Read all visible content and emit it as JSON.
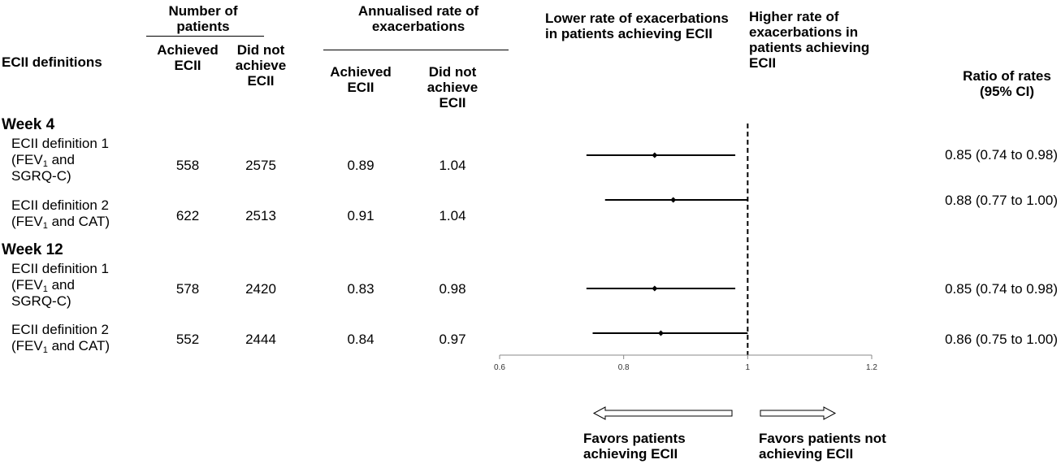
{
  "header": {
    "definitions": "ECII definitions",
    "num_patients": "Number of patients",
    "annualised_rate": "Annualised rate of exacerbations",
    "achieved": "Achieved ECII",
    "did_not_achieve": "Did not achieve ECII",
    "lower_rate": "Lower rate of exacerbations in patients achieving ECII",
    "higher_rate": "Higher rate of exacerbations in patients achieving ECII",
    "ratio": "Ratio of rates (95% CI)"
  },
  "groups": [
    {
      "label": "Week 4",
      "rows": [
        {
          "def_line1": "ECII definition 1",
          "def_line2_pre": "(FEV",
          "def_line2_sub": "1",
          "def_line2_post": " and",
          "def_line3": "SGRQ-C)",
          "n_achieved": "558",
          "n_not": "2575",
          "rate_achieved": "0.89",
          "rate_not": "1.04",
          "ratio_text": "0.85 (0.74 to 0.98)"
        },
        {
          "def_line1": "ECII definition 2",
          "def_line2_pre": "(FEV",
          "def_line2_sub": "1",
          "def_line2_post": " and CAT)",
          "def_line3": "",
          "n_achieved": "622",
          "n_not": "2513",
          "rate_achieved": "0.91",
          "rate_not": "1.04",
          "ratio_text": "0.88 (0.77 to 1.00)"
        }
      ]
    },
    {
      "label": "Week 12",
      "rows": [
        {
          "def_line1": "ECII definition 1",
          "def_line2_pre": "(FEV",
          "def_line2_sub": "1",
          "def_line2_post": " and",
          "def_line3": "SGRQ-C)",
          "n_achieved": "578",
          "n_not": "2420",
          "rate_achieved": "0.83",
          "rate_not": "0.98",
          "ratio_text": "0.85 (0.74 to 0.98)"
        },
        {
          "def_line1": "ECII definition 2",
          "def_line2_pre": "(FEV",
          "def_line2_sub": "1",
          "def_line2_post": " and CAT)",
          "def_line3": "",
          "n_achieved": "552",
          "n_not": "2444",
          "rate_achieved": "0.84",
          "rate_not": "0.97",
          "ratio_text": "0.86 (0.75 to 1.00)"
        }
      ]
    }
  ],
  "footer": {
    "favors_achieving": "Favors patients achieving ECII",
    "favors_not": "Favors patients not achieving ECII"
  },
  "chart_data": {
    "type": "forest",
    "x_ticks": [
      0.6,
      0.8,
      1,
      1.2
    ],
    "x_tick_labels": [
      "0.6",
      "0.8",
      "1",
      "1.2"
    ],
    "xlim": [
      0.6,
      1.2
    ],
    "reference_line": 1,
    "points": [
      {
        "group": "Week 4",
        "estimate": 0.85,
        "lower": 0.74,
        "upper": 0.98
      },
      {
        "group": "Week 4",
        "estimate": 0.88,
        "lower": 0.77,
        "upper": 1.0
      },
      {
        "group": "Week 12",
        "estimate": 0.85,
        "lower": 0.74,
        "upper": 0.98
      },
      {
        "group": "Week 12",
        "estimate": 0.86,
        "lower": 0.75,
        "upper": 1.0
      }
    ]
  }
}
